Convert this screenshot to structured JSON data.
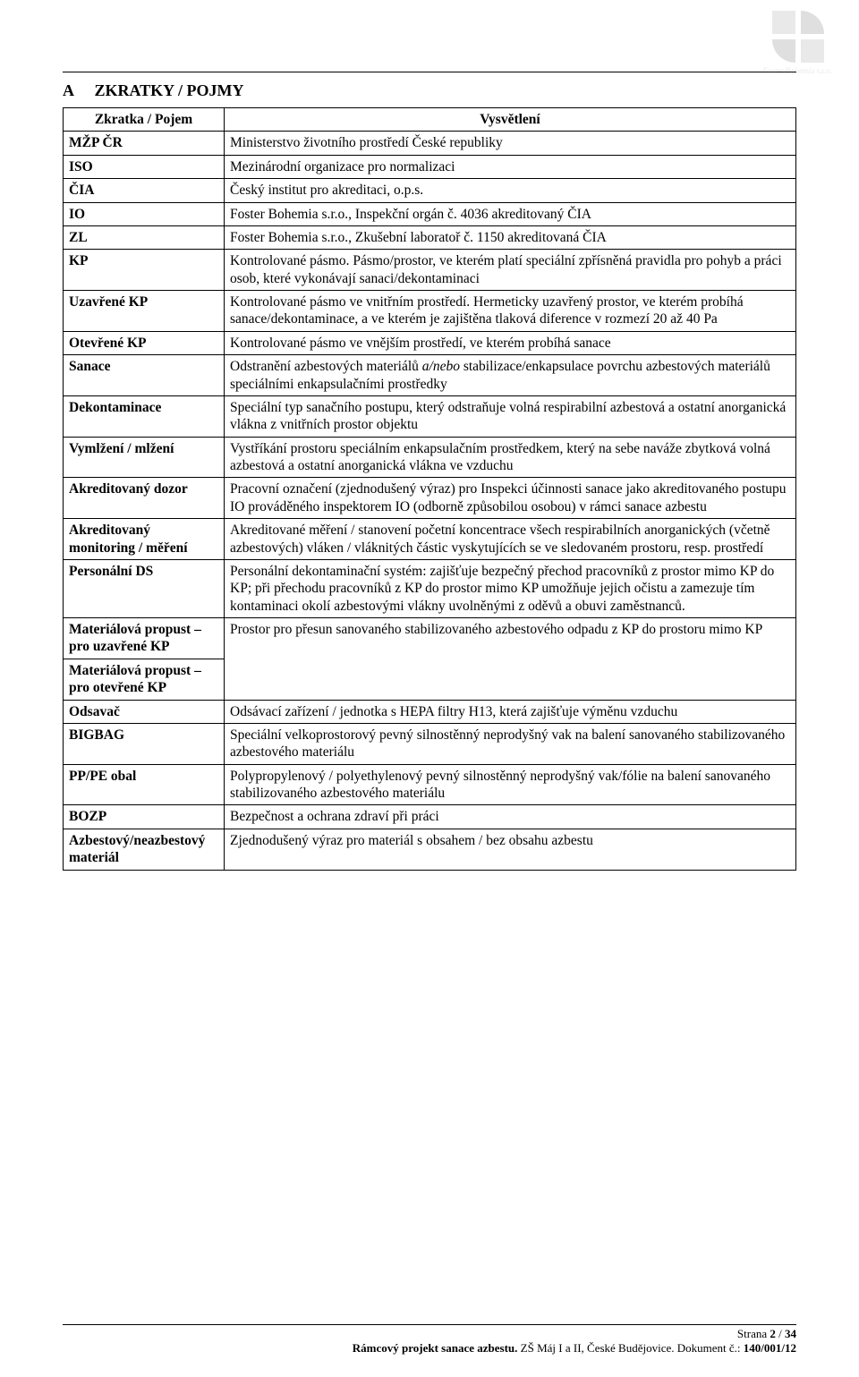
{
  "watermark": {
    "company": "Foster Bohemia s.r.o."
  },
  "heading_letter": "A",
  "heading_text": "ZKRATKY / POJMY",
  "table": {
    "header_term": "Zkratka / Pojem",
    "header_def": "Vysvětlení",
    "rows": [
      {
        "term": "MŽP ČR",
        "def": "Ministerstvo životního prostředí České republiky"
      },
      {
        "term": "ISO",
        "def": "Mezinárodní organizace pro normalizaci"
      },
      {
        "term": "ČIA",
        "def": "Český institut pro akreditaci, o.p.s."
      },
      {
        "term": "IO",
        "def": "Foster Bohemia s.r.o., Inspekční orgán č. 4036 akreditovaný ČIA"
      },
      {
        "term": "ZL",
        "def": "Foster Bohemia s.r.o., Zkušební laboratoř č. 1150 akreditovaná ČIA"
      },
      {
        "term": "KP",
        "def": "Kontrolované pásmo. Pásmo/prostor, ve kterém platí speciální zpřísněná pravidla pro pohyb a práci osob, které vykonávají sanaci/dekontaminaci"
      },
      {
        "term": "Uzavřené KP",
        "def": "Kontrolované pásmo ve vnitřním prostředí. Hermeticky uzavřený prostor, ve kterém probíhá sanace/dekontaminace, a ve kterém je zajištěna tlaková diference v rozmezí 20 až 40 Pa"
      },
      {
        "term": "Otevřené KP",
        "def": "Kontrolované pásmo ve vnějším prostředí, ve kterém probíhá sanace"
      },
      {
        "term": "Sanace",
        "def_html": "Odstranění azbestových materiálů <span class=\"italic\">a/nebo</span> stabilizace/enkapsulace povrchu azbestových materiálů speciálními enkapsulačními prostředky"
      },
      {
        "term": "Dekontaminace",
        "def": "Speciální typ sanačního postupu, který odstraňuje volná respirabilní azbestová a ostatní anorganická vlákna z vnitřních prostor objektu"
      },
      {
        "term": "Vymlžení / mlžení",
        "def": "Vystříkání prostoru speciálním enkapsulačním prostředkem, který na sebe naváže zbytková volná azbestová a ostatní anorganická vlákna ve vzduchu"
      },
      {
        "term": "Akreditovaný dozor",
        "def": "Pracovní označení (zjednodušený výraz) pro Inspekci účinnosti sanace jako akreditovaného postupu IO prováděného inspektorem IO (odborně způsobilou osobou)  v rámci sanace azbestu"
      },
      {
        "term": "Akreditovaný monitoring / měření",
        "def": "Akreditované měření / stanovení početní koncentrace všech respirabilních anorganických (včetně azbestových) vláken / vláknitých částic vyskytujících se ve sledovaném prostoru, resp. prostředí"
      },
      {
        "term": "Personální DS",
        "def": "Personální dekontaminační systém: zajišťuje bezpečný přechod pracovníků z prostor mimo KP do KP; při přechodu pracovníků z KP do prostor mimo KP umožňuje jejich očistu a zamezuje tím kontaminaci okolí azbestovými vlákny uvolněnými z oděvů a obuvi zaměstnanců."
      },
      {
        "term": "Materiálová propust – pro uzavřené KP",
        "merge_with_next": true,
        "def": "Prostor pro přesun sanovaného stabilizovaného azbestového odpadu z KP do prostoru mimo KP"
      },
      {
        "term": "Materiálová propust – pro otevřené KP"
      },
      {
        "term": "Odsavač",
        "def": "Odsávací zařízení / jednotka s HEPA filtry H13, která zajišťuje výměnu vzduchu"
      },
      {
        "term": "BIGBAG",
        "def": "Speciální velkoprostorový pevný silnostěnný neprodyšný vak na balení sanovaného stabilizovaného azbestového materiálu"
      },
      {
        "term": "PP/PE obal",
        "def": "Polypropylenový / polyethylenový pevný silnostěnný neprodyšný vak/fólie na balení sanovaného stabilizovaného azbestového materiálu"
      },
      {
        "term": "BOZP",
        "def": "Bezpečnost a ochrana zdraví při práci"
      },
      {
        "term": "Azbestový/neazbestový materiál",
        "def": "Zjednodušený výraz pro materiál s obsahem / bez obsahu azbestu"
      }
    ]
  },
  "footer": {
    "line1_prefix": "Strana ",
    "page_current": "2",
    "page_sep": " / ",
    "page_total": "34",
    "line2_bold": "Rámcový projekt sanace azbestu.",
    "line2_rest": " ZŠ Máj I a II, České Budějovice. Dokument č.: ",
    "doc_no": "140/001/12"
  },
  "colors": {
    "text": "#000000",
    "background": "#ffffff",
    "border": "#000000",
    "watermark": "#888888"
  }
}
